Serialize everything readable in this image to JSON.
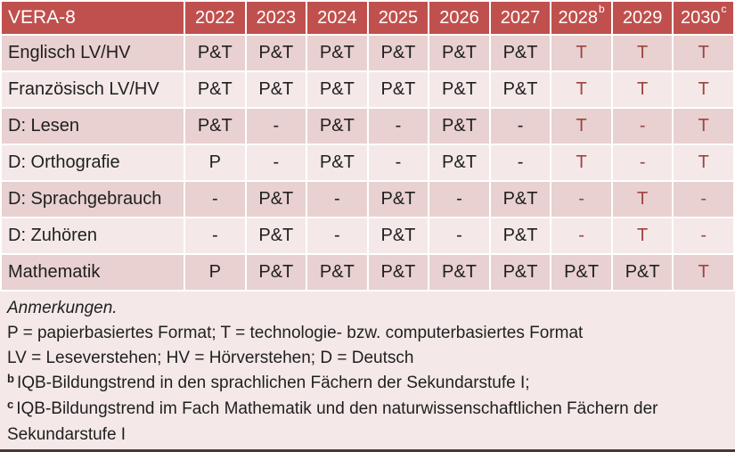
{
  "colors": {
    "header_bg": "#C0504D",
    "header_text": "#FFFFFF",
    "row_stripe_dark": "#E8D1D0",
    "row_stripe_light": "#F4E9E8",
    "accent_text": "#9E433F",
    "ink": "#1F1F1F",
    "grid_lines": "#FFFFFF",
    "bottom_bar": "#4A3836"
  },
  "table": {
    "corner_label": "VERA-8",
    "years": [
      {
        "t": "2022",
        "sup": ""
      },
      {
        "t": "2023",
        "sup": ""
      },
      {
        "t": "2024",
        "sup": ""
      },
      {
        "t": "2025",
        "sup": ""
      },
      {
        "t": "2026",
        "sup": ""
      },
      {
        "t": "2027",
        "sup": ""
      },
      {
        "t": "2028",
        "sup": "b"
      },
      {
        "t": "2029",
        "sup": ""
      },
      {
        "t": "2030",
        "sup": "c"
      }
    ],
    "rows": [
      {
        "label": "Englisch LV/HV",
        "cells": [
          {
            "t": "P&T",
            "accent": false
          },
          {
            "t": "P&T",
            "accent": false
          },
          {
            "t": "P&T",
            "accent": false
          },
          {
            "t": "P&T",
            "accent": false
          },
          {
            "t": "P&T",
            "accent": false
          },
          {
            "t": "P&T",
            "accent": false
          },
          {
            "t": "T",
            "accent": true
          },
          {
            "t": "T",
            "accent": true
          },
          {
            "t": "T",
            "accent": true
          }
        ]
      },
      {
        "label": "Französisch LV/HV",
        "cells": [
          {
            "t": "P&T",
            "accent": false
          },
          {
            "t": "P&T",
            "accent": false
          },
          {
            "t": "P&T",
            "accent": false
          },
          {
            "t": "P&T",
            "accent": false
          },
          {
            "t": "P&T",
            "accent": false
          },
          {
            "t": "P&T",
            "accent": false
          },
          {
            "t": "T",
            "accent": true
          },
          {
            "t": "T",
            "accent": true
          },
          {
            "t": "T",
            "accent": true
          }
        ]
      },
      {
        "label": "D: Lesen",
        "cells": [
          {
            "t": "P&T",
            "accent": false
          },
          {
            "t": "-",
            "accent": false
          },
          {
            "t": "P&T",
            "accent": false
          },
          {
            "t": "-",
            "accent": false
          },
          {
            "t": "P&T",
            "accent": false
          },
          {
            "t": "-",
            "accent": false
          },
          {
            "t": "T",
            "accent": true
          },
          {
            "t": "-",
            "accent": true
          },
          {
            "t": "T",
            "accent": true
          }
        ]
      },
      {
        "label": "D: Orthografie",
        "cells": [
          {
            "t": "P",
            "accent": false
          },
          {
            "t": "-",
            "accent": false
          },
          {
            "t": "P&T",
            "accent": false
          },
          {
            "t": "-",
            "accent": false
          },
          {
            "t": "P&T",
            "accent": false
          },
          {
            "t": "-",
            "accent": false
          },
          {
            "t": "T",
            "accent": true
          },
          {
            "t": "-",
            "accent": true
          },
          {
            "t": "T",
            "accent": true
          }
        ]
      },
      {
        "label": "D: Sprachgebrauch",
        "cells": [
          {
            "t": "-",
            "accent": false
          },
          {
            "t": "P&T",
            "accent": false
          },
          {
            "t": "-",
            "accent": false
          },
          {
            "t": "P&T",
            "accent": false
          },
          {
            "t": "-",
            "accent": false
          },
          {
            "t": "P&T",
            "accent": false
          },
          {
            "t": "-",
            "accent": true
          },
          {
            "t": "T",
            "accent": true
          },
          {
            "t": "-",
            "accent": true
          }
        ]
      },
      {
        "label": "D: Zuhören",
        "cells": [
          {
            "t": "-",
            "accent": false
          },
          {
            "t": "P&T",
            "accent": false
          },
          {
            "t": "-",
            "accent": false
          },
          {
            "t": "P&T",
            "accent": false
          },
          {
            "t": "-",
            "accent": false
          },
          {
            "t": "P&T",
            "accent": false
          },
          {
            "t": "-",
            "accent": true
          },
          {
            "t": "T",
            "accent": true
          },
          {
            "t": "-",
            "accent": true
          }
        ]
      },
      {
        "label": "Mathematik",
        "cells": [
          {
            "t": "P",
            "accent": false
          },
          {
            "t": "P&T",
            "accent": false
          },
          {
            "t": "P&T",
            "accent": false
          },
          {
            "t": "P&T",
            "accent": false
          },
          {
            "t": "P&T",
            "accent": false
          },
          {
            "t": "P&T",
            "accent": false
          },
          {
            "t": "P&T",
            "accent": false
          },
          {
            "t": "P&T",
            "accent": false
          },
          {
            "t": "T",
            "accent": true
          }
        ]
      }
    ]
  },
  "notes": {
    "title": "Anmerkungen.",
    "lines": [
      {
        "sup": "",
        "text": "P = papierbasiertes Format; T = technologie- bzw. computerbasiertes Format"
      },
      {
        "sup": "",
        "text": "LV = Leseverstehen; HV = Hörverstehen; D = Deutsch"
      },
      {
        "sup": "b",
        "text": "IQB-Bildungstrend in den sprachlichen Fächern der Sekundarstufe I;"
      },
      {
        "sup": "c",
        "text": "IQB-Bildungstrend im Fach Mathematik und den naturwissenschaftlichen Fächern der Sekundarstufe I"
      }
    ]
  }
}
